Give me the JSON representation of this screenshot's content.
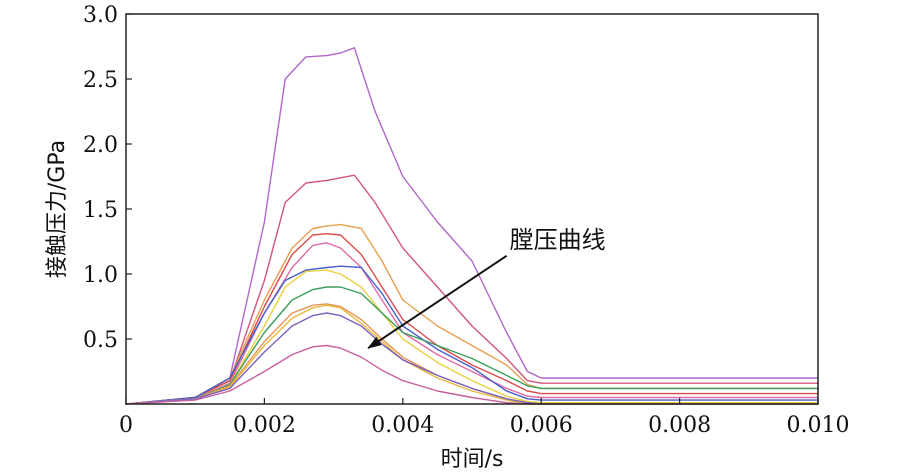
{
  "chart_data": {
    "type": "line",
    "title": "",
    "xlabel": "时间/s",
    "ylabel": "接触压力/GPa",
    "xlim": [
      0,
      0.01
    ],
    "ylim": [
      0,
      3.0
    ],
    "x_ticks": [
      0,
      0.002,
      0.004,
      0.006,
      0.008,
      0.01
    ],
    "x_tick_labels": [
      "0",
      "0.002",
      "0.004",
      "0.006",
      "0.008",
      "0.010"
    ],
    "y_ticks": [
      0.5,
      1.0,
      1.5,
      2.0,
      2.5,
      3.0
    ],
    "y_tick_labels": [
      "0.5",
      "1.0",
      "1.5",
      "2.0",
      "2.5",
      "3.0"
    ],
    "grid": false,
    "annotation": {
      "text": "膛压曲线",
      "arrow_from": [
        0.0055,
        1.14
      ],
      "arrow_to": [
        0.0035,
        0.43
      ]
    },
    "series": [
      {
        "color": "#b266c8",
        "x": [
          0,
          0.001,
          0.0015,
          0.002,
          0.0023,
          0.0026,
          0.0029,
          0.0031,
          0.0033,
          0.0036,
          0.004,
          0.0045,
          0.005,
          0.0055,
          0.0058,
          0.006,
          0.008,
          0.01
        ],
        "y": [
          0,
          0.05,
          0.2,
          1.4,
          2.5,
          2.67,
          2.68,
          2.7,
          2.74,
          2.25,
          1.75,
          1.4,
          1.1,
          0.55,
          0.25,
          0.2,
          0.2,
          0.2
        ]
      },
      {
        "color": "#d2557a",
        "x": [
          0,
          0.001,
          0.0015,
          0.002,
          0.0023,
          0.0026,
          0.0029,
          0.0031,
          0.0033,
          0.0036,
          0.004,
          0.0045,
          0.005,
          0.0055,
          0.0058,
          0.006,
          0.008,
          0.01
        ],
        "y": [
          0,
          0.05,
          0.18,
          0.95,
          1.55,
          1.7,
          1.72,
          1.74,
          1.76,
          1.55,
          1.2,
          0.9,
          0.6,
          0.35,
          0.18,
          0.16,
          0.16,
          0.16
        ]
      },
      {
        "color": "#e8a050",
        "x": [
          0,
          0.001,
          0.0015,
          0.002,
          0.0024,
          0.0027,
          0.0029,
          0.0031,
          0.0034,
          0.0037,
          0.004,
          0.0045,
          0.005,
          0.0055,
          0.0058,
          0.006,
          0.008,
          0.01
        ],
        "y": [
          0,
          0.05,
          0.2,
          0.8,
          1.2,
          1.35,
          1.37,
          1.38,
          1.35,
          1.1,
          0.8,
          0.6,
          0.45,
          0.3,
          0.15,
          0.12,
          0.12,
          0.12
        ]
      },
      {
        "color": "#d94a4a",
        "x": [
          0,
          0.001,
          0.0015,
          0.002,
          0.0024,
          0.0027,
          0.0029,
          0.0031,
          0.0034,
          0.0037,
          0.004,
          0.0045,
          0.005,
          0.0055,
          0.0058,
          0.006,
          0.008,
          0.01
        ],
        "y": [
          0,
          0.05,
          0.18,
          0.75,
          1.15,
          1.3,
          1.31,
          1.3,
          1.15,
          0.9,
          0.65,
          0.45,
          0.3,
          0.18,
          0.1,
          0.08,
          0.08,
          0.08
        ]
      },
      {
        "color": "#e06aa8",
        "x": [
          0,
          0.001,
          0.0015,
          0.002,
          0.0024,
          0.0027,
          0.0029,
          0.0031,
          0.0034,
          0.0037,
          0.004,
          0.0045,
          0.005,
          0.0055,
          0.0058,
          0.006,
          0.008,
          0.01
        ],
        "y": [
          0,
          0.04,
          0.16,
          0.7,
          1.05,
          1.22,
          1.24,
          1.2,
          1.05,
          0.8,
          0.55,
          0.38,
          0.25,
          0.12,
          0.06,
          0.05,
          0.05,
          0.05
        ]
      },
      {
        "color": "#4a5fc8",
        "x": [
          0,
          0.001,
          0.0015,
          0.002,
          0.0023,
          0.0026,
          0.0029,
          0.0031,
          0.0034,
          0.0037,
          0.004,
          0.0045,
          0.005,
          0.0055,
          0.0058,
          0.006,
          0.008,
          0.01
        ],
        "y": [
          0,
          0.05,
          0.2,
          0.7,
          0.95,
          1.03,
          1.05,
          1.06,
          1.05,
          0.85,
          0.6,
          0.42,
          0.28,
          0.1,
          0.04,
          0.03,
          0.03,
          0.03
        ]
      },
      {
        "color": "#e8d040",
        "x": [
          0,
          0.001,
          0.0015,
          0.002,
          0.0023,
          0.0026,
          0.0029,
          0.0031,
          0.0034,
          0.0037,
          0.004,
          0.0045,
          0.005,
          0.0055,
          0.0058,
          0.006,
          0.008,
          0.01
        ],
        "y": [
          0,
          0.04,
          0.15,
          0.6,
          0.9,
          1.02,
          1.03,
          1.0,
          0.9,
          0.7,
          0.5,
          0.32,
          0.18,
          0.06,
          0.02,
          0.01,
          0.01,
          0.01
        ]
      },
      {
        "color": "#3a9e5a",
        "x": [
          0,
          0.001,
          0.0015,
          0.002,
          0.0024,
          0.0027,
          0.0029,
          0.0031,
          0.0034,
          0.0037,
          0.004,
          0.0045,
          0.005,
          0.0055,
          0.0058,
          0.006,
          0.008,
          0.01
        ],
        "y": [
          0,
          0.04,
          0.15,
          0.55,
          0.8,
          0.88,
          0.9,
          0.9,
          0.85,
          0.7,
          0.55,
          0.45,
          0.35,
          0.22,
          0.14,
          0.12,
          0.12,
          0.12
        ]
      },
      {
        "color": "#e4975a",
        "x": [
          0,
          0.001,
          0.0015,
          0.002,
          0.0024,
          0.0027,
          0.0029,
          0.0031,
          0.0034,
          0.0037,
          0.004,
          0.0045,
          0.005,
          0.0055,
          0.0058,
          0.006,
          0.008,
          0.01
        ],
        "y": [
          0,
          0.04,
          0.14,
          0.48,
          0.7,
          0.76,
          0.77,
          0.75,
          0.65,
          0.5,
          0.36,
          0.22,
          0.12,
          0.04,
          0.01,
          0.0,
          0.0,
          0.0
        ]
      },
      {
        "color": "#e8b840",
        "x": [
          0,
          0.001,
          0.0015,
          0.002,
          0.0024,
          0.0027,
          0.0029,
          0.0031,
          0.0034,
          0.0037,
          0.004,
          0.0045,
          0.005,
          0.0055,
          0.0058,
          0.006,
          0.008,
          0.01
        ],
        "y": [
          0,
          0.04,
          0.13,
          0.45,
          0.66,
          0.74,
          0.76,
          0.74,
          0.62,
          0.48,
          0.34,
          0.2,
          0.1,
          0.03,
          0.0,
          0.0,
          0.0,
          0.0
        ]
      },
      {
        "color": "#7a62c0",
        "x": [
          0,
          0.001,
          0.0015,
          0.002,
          0.0024,
          0.0027,
          0.0029,
          0.0031,
          0.0034,
          0.0037,
          0.004,
          0.0045,
          0.005,
          0.0055,
          0.0058,
          0.006,
          0.008,
          0.01
        ],
        "y": [
          0,
          0.04,
          0.12,
          0.4,
          0.6,
          0.68,
          0.7,
          0.68,
          0.6,
          0.46,
          0.34,
          0.22,
          0.12,
          0.04,
          0.01,
          0.0,
          0.0,
          0.0
        ]
      },
      {
        "color": "#c860a0",
        "x": [
          0,
          0.001,
          0.0015,
          0.002,
          0.0024,
          0.0027,
          0.0029,
          0.0031,
          0.0034,
          0.0037,
          0.004,
          0.0045,
          0.005,
          0.0055,
          0.0058,
          0.006,
          0.008,
          0.01
        ],
        "y": [
          0,
          0.03,
          0.1,
          0.25,
          0.38,
          0.44,
          0.45,
          0.43,
          0.36,
          0.26,
          0.18,
          0.1,
          0.05,
          0.01,
          0.0,
          0.0,
          0.0,
          0.0
        ]
      }
    ]
  }
}
